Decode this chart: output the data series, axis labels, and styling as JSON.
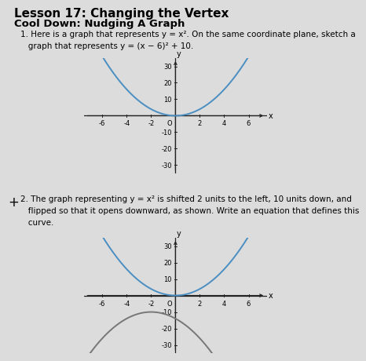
{
  "title": "Lesson 17: Changing the Vertex",
  "subtitle": "Cool Down: Nudging A Graph",
  "q1_line1": "1. Here is a graph that represents y = x",
  "q1_line1b": "2",
  "q1_line2a": "   graph that represents y = (x − 6)",
  "q1_line2b": "2",
  "q1_line2c": " + 10.",
  "q1_line1_end": ". On the same coordinate plane, sketch a",
  "q2_line1": "2. The graph representing y = x",
  "q2_line1b": "2",
  "q2_line1_end": " is shifted 2 units to the left, 10 units down, and",
  "q2_line2": "   flipped so that it opens downward, as shown. Write an equation that defines this",
  "q2_line3": "   curve.",
  "plus_sign": "+",
  "xlim": [
    -7.5,
    7.5
  ],
  "ylim": [
    -35,
    35
  ],
  "xticks": [
    -6,
    -4,
    -2,
    2,
    4,
    6
  ],
  "yticks": [
    -30,
    -20,
    -10,
    10,
    20,
    30
  ],
  "parabola_color": "#4a8ec2",
  "parabola2_color": "#777777",
  "axis_color": "#222222",
  "bg_color": "#dcdcdc",
  "title_fontsize": 11,
  "subtitle_fontsize": 9.5,
  "text_fontsize": 7.5
}
